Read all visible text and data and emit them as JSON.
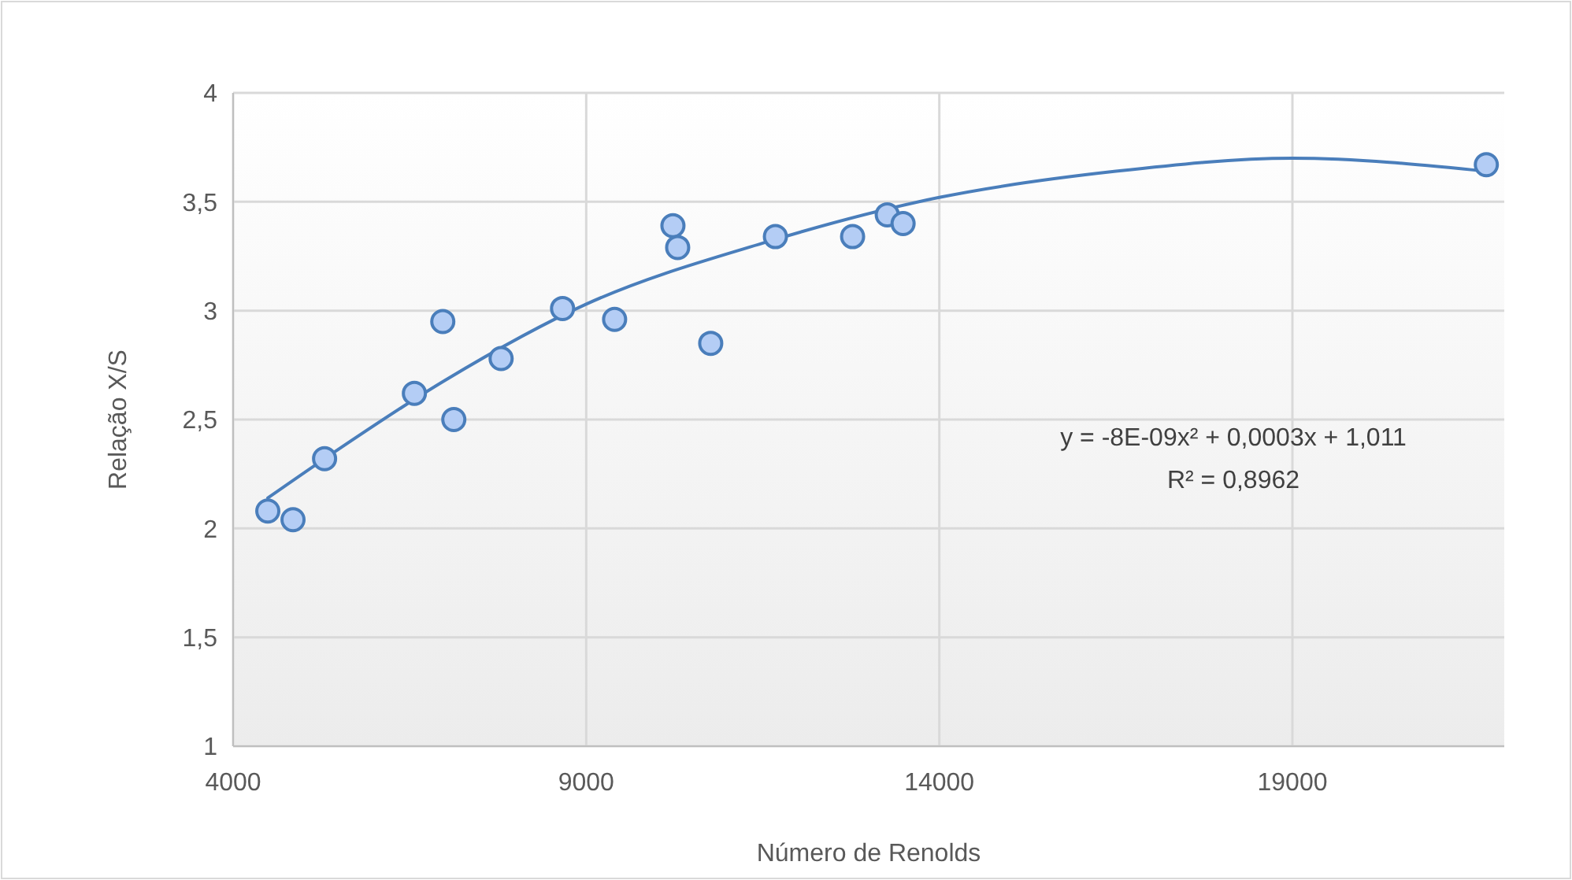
{
  "chart_data": {
    "type": "scatter",
    "xlabel": "Número de Renolds",
    "ylabel": "Relação X/S",
    "xlim": [
      4000,
      22000
    ],
    "xticks": [
      4000,
      9000,
      14000,
      19000
    ],
    "ylim": [
      1,
      4
    ],
    "yticks": [
      1,
      {
        "value": 1.5,
        "label": "1,5"
      },
      2,
      {
        "value": 2.5,
        "label": "2,5"
      },
      3,
      {
        "value": 3.5,
        "label": "3,5"
      },
      4
    ],
    "grid": true,
    "series": [
      {
        "marker": "circle",
        "color": "#b4cdf5",
        "x": [
          4491,
          4848,
          5295,
          6567,
          6969,
          7125,
          7795,
          8665,
          9402,
          10228,
          10295,
          10763,
          11679,
          12772,
          13263,
          13487,
          21746
        ],
        "values": [
          2.08,
          2.04,
          2.32,
          2.62,
          2.95,
          2.5,
          2.78,
          3.01,
          2.96,
          3.39,
          3.29,
          2.85,
          3.34,
          3.34,
          3.44,
          3.4,
          3.67
        ]
      },
      {
        "type": "line",
        "color": "#4a7ebb",
        "x": [
          4491,
          5295,
          7000,
          9000,
          11500,
          14000,
          16500,
          19000,
          21746
        ],
        "values": [
          2.14,
          2.32,
          2.68,
          3.03,
          3.31,
          3.52,
          3.64,
          3.7,
          3.64
        ]
      }
    ],
    "annotations": [
      "y = -8E-09x² + 0,0003x + 1,011",
      "R² = 0,8962"
    ]
  }
}
